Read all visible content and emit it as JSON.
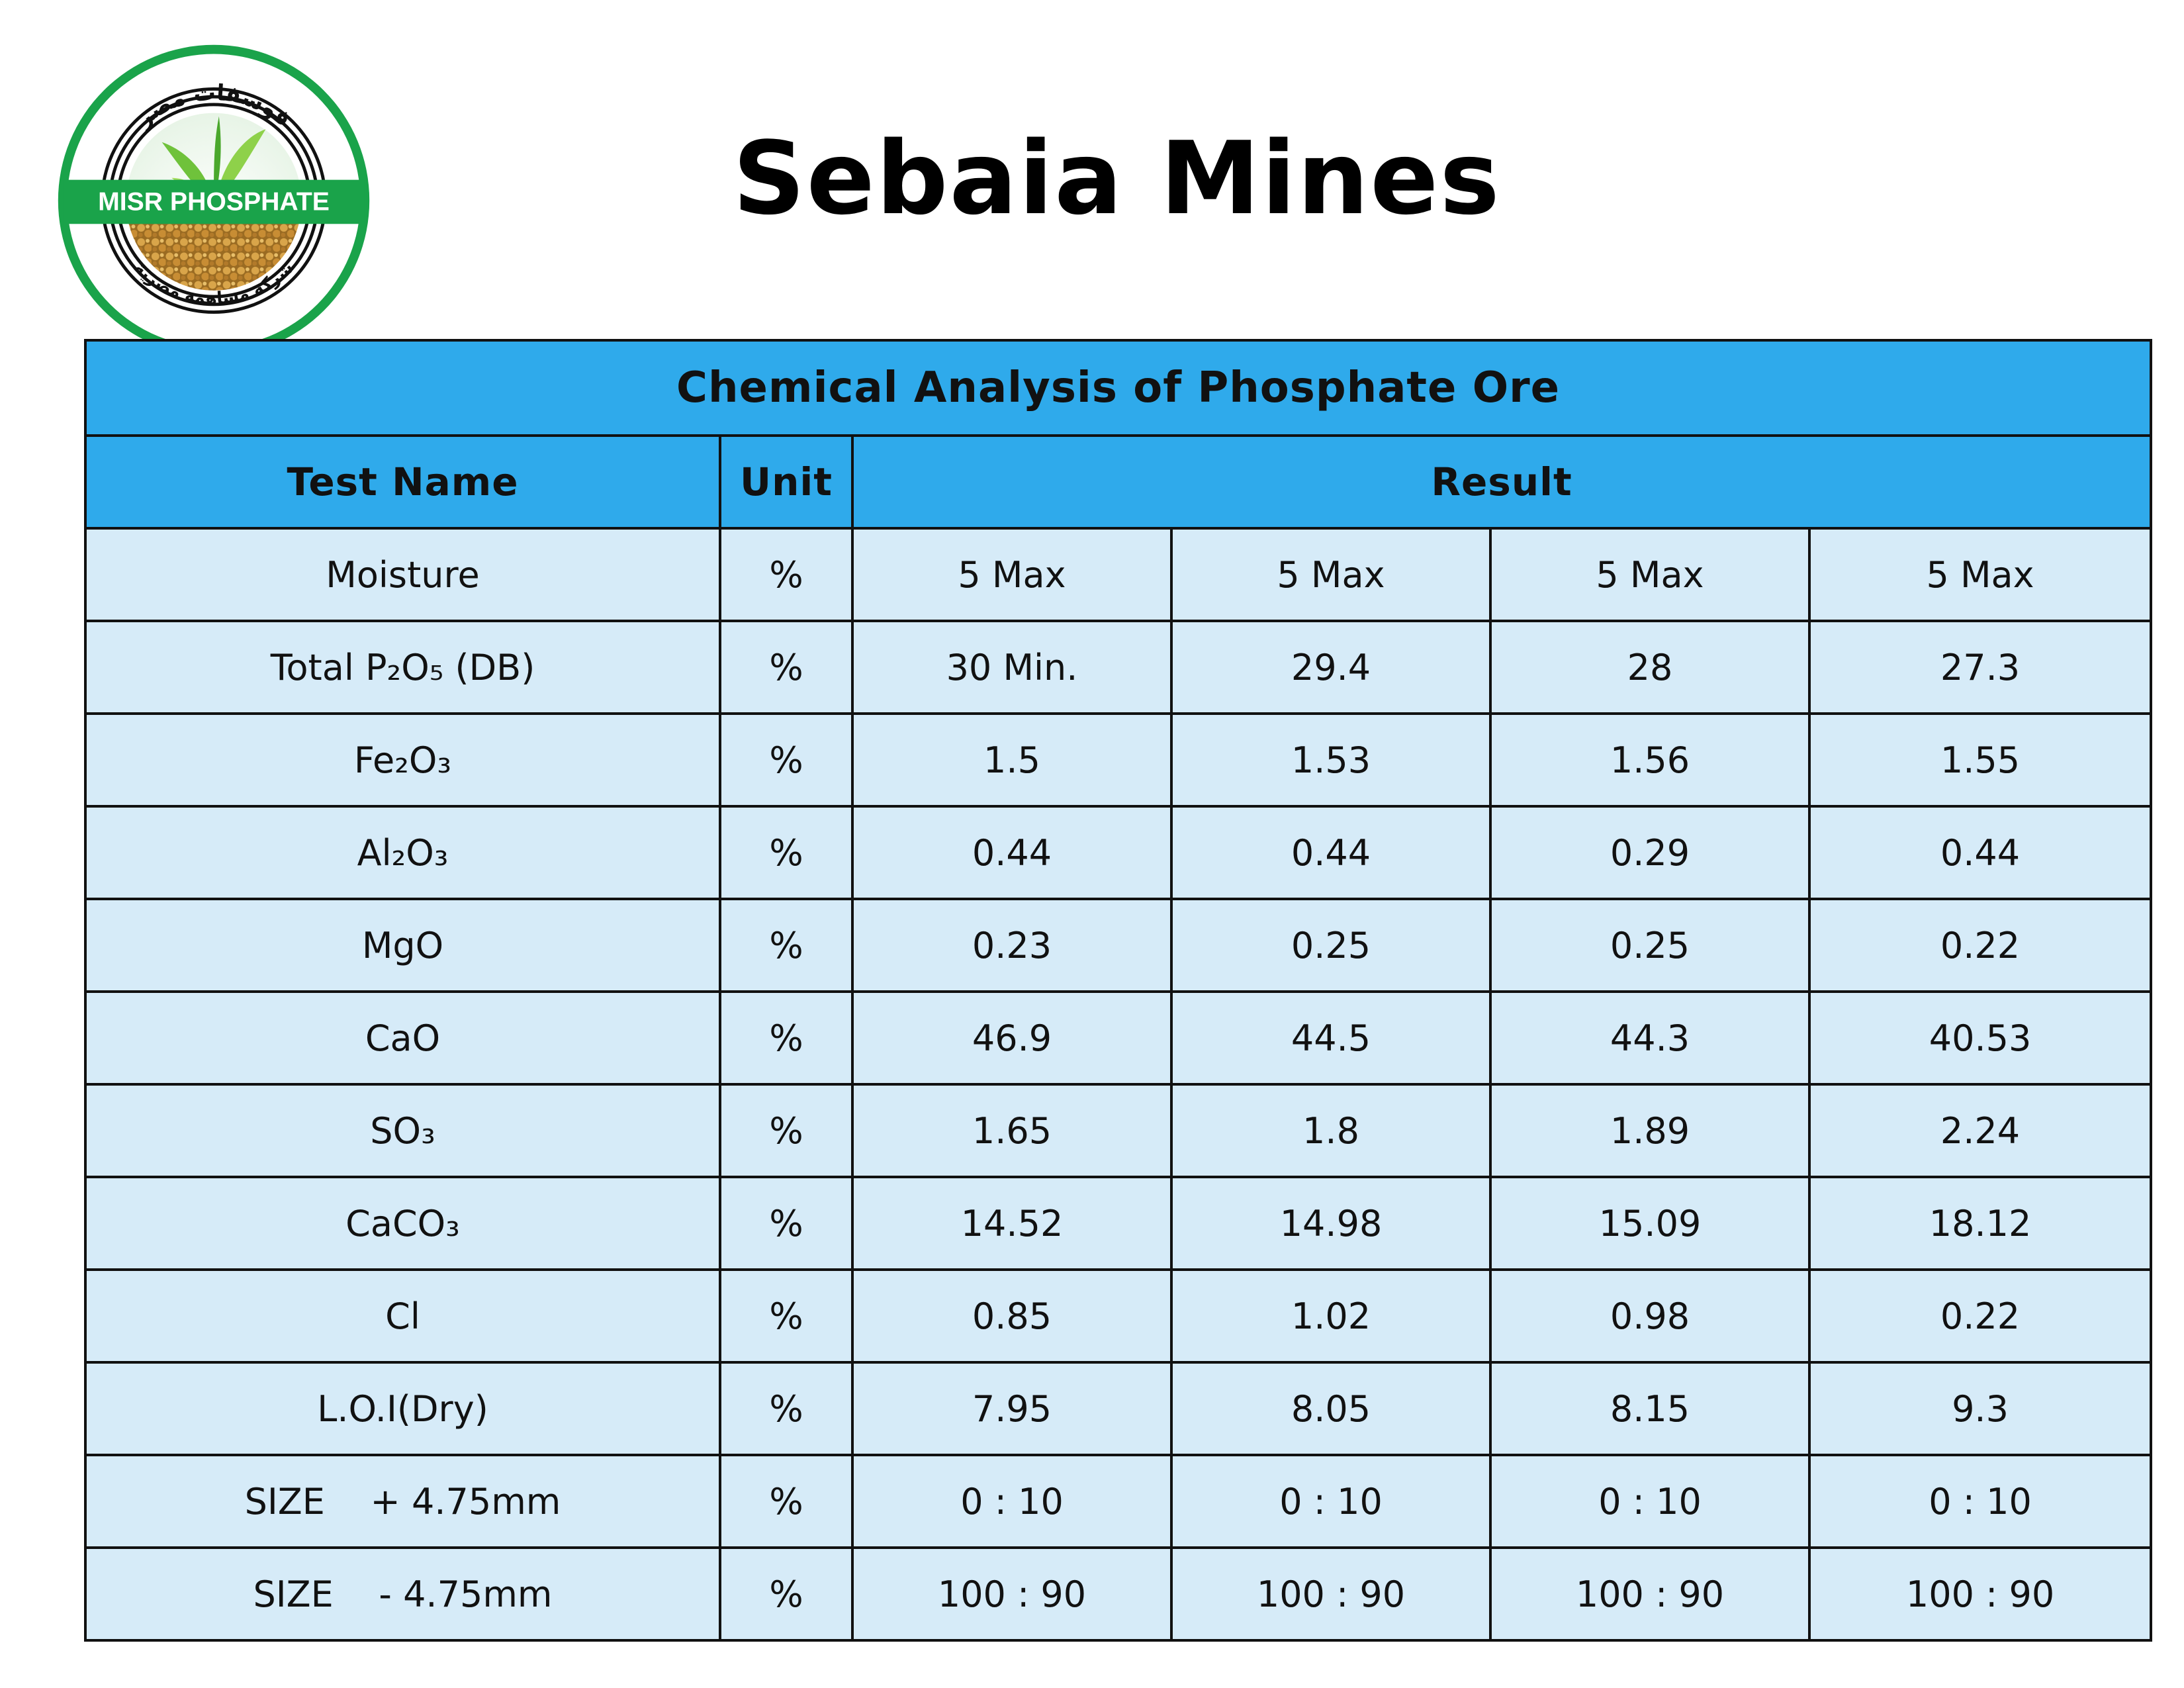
{
  "logo": {
    "arabic_top": "فوسفات مصر",
    "brand": "MISR PHOSPHATE",
    "arabic_bottom": "شركة مساهمة مصرية"
  },
  "title": "Sebaia Mines",
  "table": {
    "caption": "Chemical Analysis of Phosphate Ore",
    "headers": {
      "test_name": "Test Name",
      "unit": "Unit",
      "result": "Result"
    },
    "rows": [
      {
        "name": "Moisture",
        "unit": "%",
        "values": [
          "5 Max",
          "5 Max",
          "5 Max",
          "5 Max"
        ]
      },
      {
        "name": "Total P₂O₅ (DB)",
        "unit": "%",
        "values": [
          "30 Min.",
          "29.4",
          "28",
          "27.3"
        ]
      },
      {
        "name": "Fe₂O₃",
        "unit": "%",
        "values": [
          "1.5",
          "1.53",
          "1.56",
          "1.55"
        ]
      },
      {
        "name": "Al₂O₃",
        "unit": "%",
        "values": [
          "0.44",
          "0.44",
          "0.29",
          "0.44"
        ]
      },
      {
        "name": "MgO",
        "unit": "%",
        "values": [
          "0.23",
          "0.25",
          "0.25",
          "0.22"
        ]
      },
      {
        "name": "CaO",
        "unit": "%",
        "values": [
          "46.9",
          "44.5",
          "44.3",
          "40.53"
        ]
      },
      {
        "name": "SO₃",
        "unit": "%",
        "values": [
          "1.65",
          "1.8",
          "1.89",
          "2.24"
        ]
      },
      {
        "name": "CaCO₃",
        "unit": "%",
        "values": [
          "14.52",
          "14.98",
          "15.09",
          "18.12"
        ]
      },
      {
        "name": "Cl",
        "unit": "%",
        "values": [
          "0.85",
          "1.02",
          "0.98",
          "0.22"
        ]
      },
      {
        "name": "L.O.I(Dry)",
        "unit": "%",
        "values": [
          "7.95",
          "8.05",
          "8.15",
          "9.3"
        ]
      },
      {
        "name": "SIZE    + 4.75mm",
        "unit": "%",
        "values": [
          "0 : 10",
          "0 : 10",
          "0 : 10",
          "0 : 10"
        ]
      },
      {
        "name": "SIZE    - 4.75mm",
        "unit": "%",
        "values": [
          "100 : 90",
          "100 : 90",
          "100 : 90",
          "100 : 90"
        ]
      }
    ]
  },
  "colors": {
    "header_blue": "#2faaeb",
    "row_light_blue": "#d6ebf8",
    "logo_green": "#1aa34a"
  }
}
